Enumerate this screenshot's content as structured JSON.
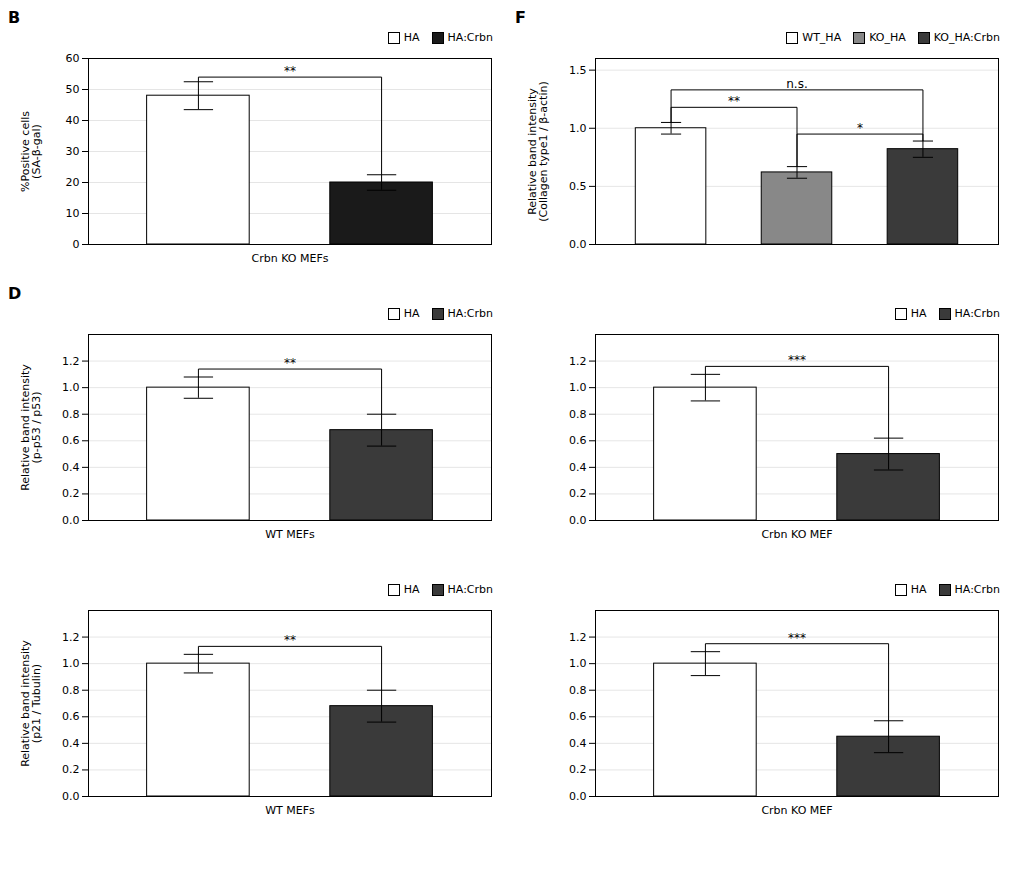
{
  "chart_data": [
    {
      "type": "bar",
      "title": "B",
      "categories": [
        "HA",
        "HA:Crbn"
      ],
      "values": [
        48.0,
        20.0
      ],
      "errors": [
        4.5,
        2.5
      ],
      "colors": [
        "#ffffff",
        "#1a1a1a"
      ],
      "ylabel": "%Positive cells\n(SA-β-gal)",
      "xlabel": "Crbn KO MEFs",
      "ylim": [
        0,
        60
      ],
      "yticks": [
        0,
        10,
        20,
        30,
        40,
        50,
        60
      ],
      "grid": true,
      "legend": "upper right",
      "tick_labels": "y",
      "annotations": [
        {
          "text": "**",
          "from": "HA",
          "to": "HA:Crbn",
          "y": 54
        }
      ]
    },
    {
      "type": "bar",
      "title": "D",
      "categories": [
        "HA",
        "HA:Crbn"
      ],
      "values": [
        1.0,
        0.68
      ],
      "errors": [
        0.08,
        0.12
      ],
      "colors": [
        "#ffffff",
        "#3a3a3a"
      ],
      "ylabel": "Relative band intensity\n(p-p53 / p53)",
      "xlabel": "WT MEFs",
      "ylim": [
        0,
        1.4
      ],
      "yticks": [
        {
          "value": 0,
          "label": "0.0"
        },
        0.2,
        0.4,
        0.6,
        0.8,
        {
          "value": 1.0,
          "label": "1.0"
        },
        1.2
      ],
      "grid": true,
      "legend": "upper right",
      "tick_labels": "y",
      "annotations": [
        {
          "text": "**",
          "from": "HA",
          "to": "HA:Crbn",
          "y": 1.14
        }
      ]
    },
    {
      "type": "bar",
      "categories": [
        "HA",
        "HA:Crbn"
      ],
      "values": [
        1.0,
        0.5
      ],
      "errors": [
        0.1,
        0.12
      ],
      "colors": [
        "#ffffff",
        "#3a3a3a"
      ],
      "xlabel": "Crbn KO MEF",
      "ylim": [
        0,
        1.4
      ],
      "yticks": [
        {
          "value": 0,
          "label": "0.0"
        },
        0.2,
        0.4,
        0.6,
        0.8,
        {
          "value": 1.0,
          "label": "1.0"
        },
        1.2
      ],
      "grid": true,
      "legend": "upper right",
      "tick_labels": "y",
      "annotations": [
        {
          "text": "***",
          "from": "HA",
          "to": "HA:Crbn",
          "y": 1.16
        }
      ]
    },
    {
      "type": "bar",
      "categories": [
        "HA",
        "HA:Crbn"
      ],
      "values": [
        1.0,
        0.68
      ],
      "errors": [
        0.07,
        0.12
      ],
      "colors": [
        "#ffffff",
        "#3a3a3a"
      ],
      "ylabel": "Relative band intensity\n(p21 / Tubulin)",
      "xlabel": "WT MEFs",
      "ylim": [
        0,
        1.4
      ],
      "yticks": [
        {
          "value": 0,
          "label": "0.0"
        },
        0.2,
        0.4,
        0.6,
        0.8,
        {
          "value": 1.0,
          "label": "1.0"
        },
        1.2
      ],
      "grid": true,
      "legend": "upper right",
      "tick_labels": "y",
      "annotations": [
        {
          "text": "**",
          "from": "HA",
          "to": "HA:Crbn",
          "y": 1.13
        }
      ]
    },
    {
      "type": "bar",
      "categories": [
        "HA",
        "HA:Crbn"
      ],
      "values": [
        1.0,
        0.45
      ],
      "errors": [
        0.09,
        0.12
      ],
      "colors": [
        "#ffffff",
        "#3a3a3a"
      ],
      "xlabel": "Crbn KO MEF",
      "ylim": [
        0,
        1.4
      ],
      "yticks": [
        {
          "value": 0,
          "label": "0.0"
        },
        0.2,
        0.4,
        0.6,
        0.8,
        {
          "value": 1.0,
          "label": "1.0"
        },
        1.2
      ],
      "grid": true,
      "legend": "upper right",
      "tick_labels": "y",
      "annotations": [
        {
          "text": "***",
          "from": "HA",
          "to": "HA:Crbn",
          "y": 1.15
        }
      ]
    },
    {
      "type": "bar",
      "title": "F",
      "categories": [
        "WT_HA",
        "KO_HA",
        "KO_HA:Crbn"
      ],
      "values": [
        1.0,
        0.62,
        0.82
      ],
      "errors": [
        0.05,
        0.05,
        0.07
      ],
      "colors": [
        "#ffffff",
        "#888888",
        "#3a3a3a"
      ],
      "ylabel": "Relative band intensity\n(Collagen type1 / β-actin)",
      "ylim": [
        0,
        1.6
      ],
      "yticks": [
        {
          "value": 0,
          "label": "0.0"
        },
        0.5,
        {
          "value": 1.0,
          "label": "1.0"
        },
        1.5
      ],
      "grid": true,
      "legend": "upper right",
      "tick_labels": "y",
      "annotations": [
        {
          "text": "**",
          "from": "WT_HA",
          "to": "KO_HA",
          "y": 1.18
        },
        {
          "text": "n.s.",
          "from": "WT_HA",
          "to": "KO_HA:Crbn",
          "y": 1.33
        },
        {
          "text": "*",
          "from": "KO_HA",
          "to": "KO_HA:Crbn",
          "y": 0.95
        }
      ]
    }
  ]
}
